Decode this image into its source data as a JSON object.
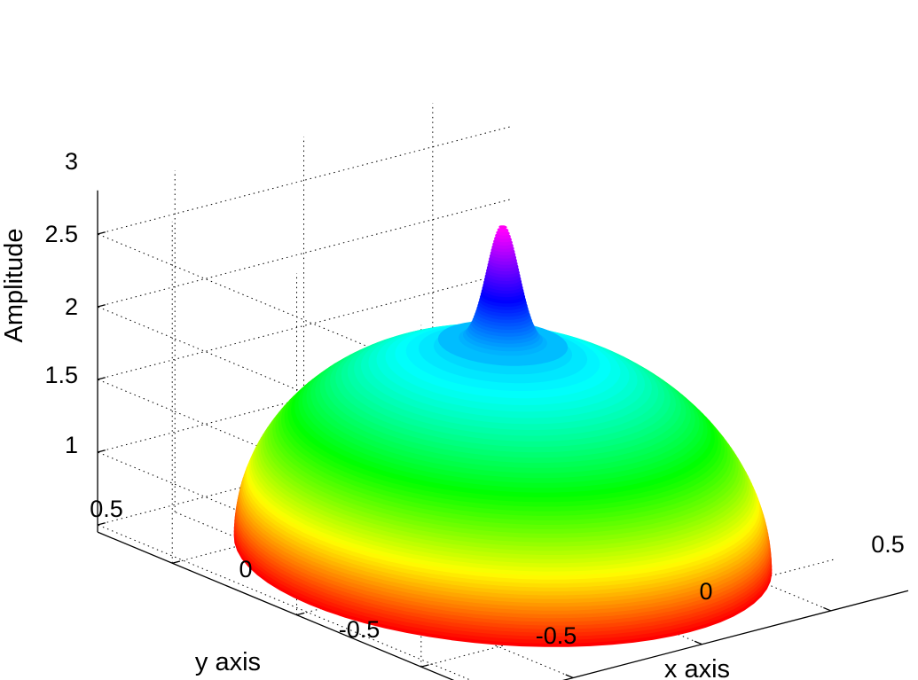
{
  "chart_data": {
    "type": "surface",
    "xlabel": "x axis",
    "ylabel": "y axis",
    "zlabel": "Amplitude",
    "x_ticks": [
      -0.5,
      0,
      0.5
    ],
    "y_ticks": [
      -0.5,
      0,
      0.5
    ],
    "z_ticks": [
      1,
      1.5,
      2,
      2.5,
      3
    ],
    "x_tick_labels": [
      "-0.5",
      "0",
      "0.5"
    ],
    "y_tick_labels": [
      "-0.5",
      "0",
      "0.5"
    ],
    "z_tick_labels": [
      "1",
      "1.5",
      "2",
      "2.5",
      "3"
    ],
    "xlim": [
      -0.8,
      0.8
    ],
    "ylim": [
      -0.8,
      0.8
    ],
    "zlim": [
      0.95,
      3.3
    ],
    "grid": true,
    "colormap": "hsv",
    "surface": {
      "domain": "disk",
      "radius": 0.75,
      "dome": {
        "center_amplitude": 2.45,
        "edge_amplitude": 1.0,
        "profile": "sqrt(1 - r^2/R^2)"
      },
      "peak": {
        "x": 0,
        "y": 0,
        "amplitude": 3.27,
        "base_amplitude": 2.45
      }
    },
    "colors": [
      "#ff0000",
      "#ffff00",
      "#00ff00",
      "#00ffff",
      "#0000ff",
      "#ff00ff"
    ]
  }
}
